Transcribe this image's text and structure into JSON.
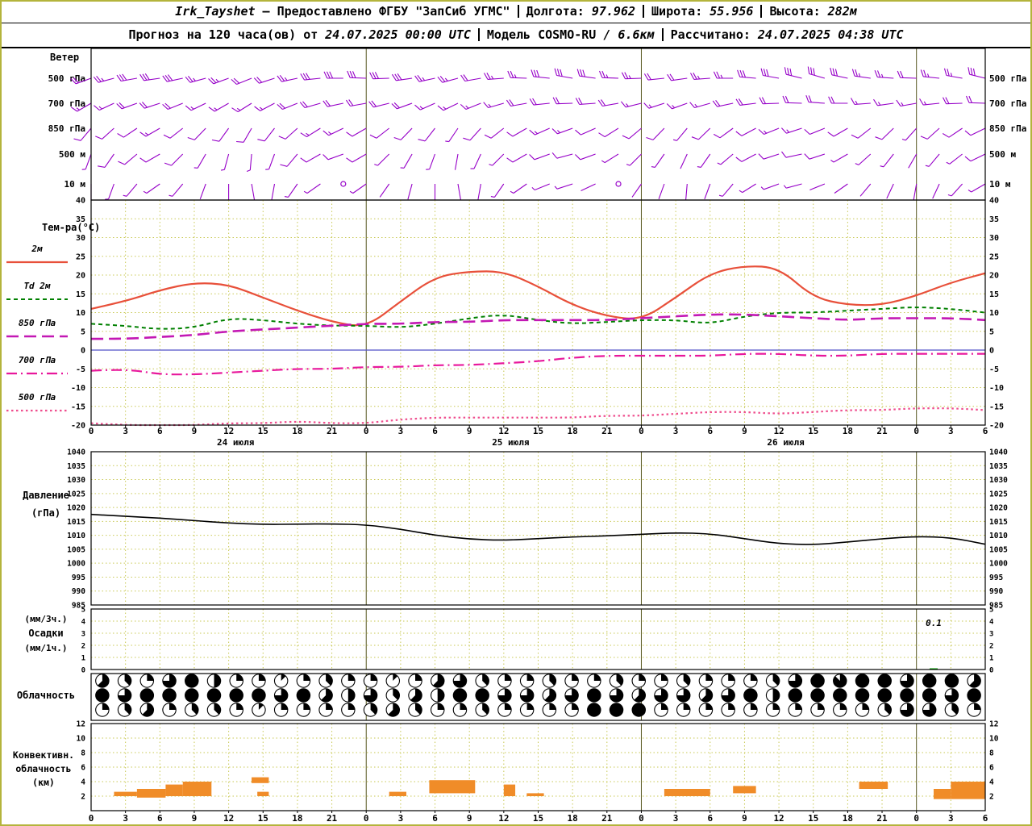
{
  "header": {
    "station": "Irk_Tayshet",
    "provider": "— Предоставлено ФГБУ \"ЗапСиб УГМС\"",
    "lon_label": "Долгота:",
    "lon": "97.962",
    "lat_label": "Широта:",
    "lat": "55.956",
    "alt_label": "Высота:",
    "alt": "282м",
    "forecast_label": "Прогноз на 120 часа(ов) от",
    "run_time": "24.07.2025 00:00 UTC",
    "model_label": "Модель",
    "model": "COSMO-RU",
    "model_res": "/ 6.6км",
    "calc_label": "Рассчитано:",
    "calc_time": "24.07.2025 04:38 UTC"
  },
  "palette": {
    "grid": "#c9c955",
    "day_line": "#55551e",
    "zero_line": "#5050c8",
    "barb": "#9600c8",
    "border_olive": "#b4b43c"
  },
  "axes": {
    "hour_max": 78,
    "hour_values": [
      0,
      3,
      6,
      9,
      12,
      15,
      18,
      21,
      24,
      27,
      30,
      33,
      36,
      39,
      42,
      45,
      48,
      51,
      54,
      57,
      60,
      63,
      66,
      69,
      72,
      75,
      78
    ],
    "hour_labels": [
      "0",
      "3",
      "6",
      "9",
      "12",
      "15",
      "18",
      "21",
      "0",
      "3",
      "6",
      "9",
      "12",
      "15",
      "18",
      "21",
      "0",
      "3",
      "6",
      "9",
      "12",
      "15",
      "18",
      "21",
      "0",
      "3",
      "6"
    ],
    "date_labels": [
      {
        "label": "24 июля",
        "hour": 12.6
      },
      {
        "label": "25 июля",
        "hour": 36.6
      },
      {
        "label": "26 июля",
        "hour": 60.6
      }
    ],
    "day_boundaries": [
      24,
      48,
      72
    ]
  },
  "chart_data": [
    {
      "id": "wind",
      "type": "wind-barbs",
      "title": "Ветер",
      "x_start_hour": 0,
      "x_step_hours": 2,
      "levels": [
        {
          "label": "500 гПа",
          "dirs_deg": [
            250,
            255,
            260,
            262,
            258,
            255,
            250,
            248,
            252,
            258,
            264,
            270,
            272,
            268,
            262,
            258,
            255,
            260,
            266,
            272,
            276,
            280,
            278,
            272,
            268,
            264,
            262,
            266,
            270,
            275,
            280,
            284,
            286,
            282,
            278,
            274,
            272,
            276,
            280,
            284
          ],
          "speeds_ms": [
            12,
            14,
            15,
            16,
            15,
            14,
            13,
            12,
            12,
            13,
            15,
            16,
            17,
            16,
            15,
            14,
            13,
            12,
            13,
            14,
            15,
            16,
            15,
            14,
            13,
            12,
            12,
            13,
            14,
            15,
            16,
            17,
            16,
            15,
            14,
            13,
            12,
            13,
            14,
            15
          ]
        },
        {
          "label": "700 гПа",
          "dirs_deg": [
            240,
            245,
            250,
            252,
            248,
            244,
            240,
            238,
            242,
            248,
            254,
            258,
            260,
            256,
            250,
            246,
            244,
            248,
            254,
            260,
            264,
            268,
            266,
            260,
            256,
            252,
            250,
            254,
            258,
            263,
            268,
            272,
            274,
            270,
            266,
            262,
            260,
            264,
            268,
            272
          ],
          "speeds_ms": [
            8,
            9,
            10,
            11,
            10,
            9,
            9,
            8,
            9,
            10,
            11,
            12,
            12,
            11,
            10,
            9,
            9,
            8,
            9,
            10,
            11,
            12,
            11,
            10,
            9,
            9,
            8,
            9,
            10,
            11,
            12,
            12,
            11,
            10,
            9,
            9,
            8,
            9,
            10,
            11
          ]
        },
        {
          "label": "850 гПа",
          "dirs_deg": [
            220,
            228,
            236,
            240,
            232,
            224,
            216,
            210,
            218,
            228,
            238,
            244,
            240,
            232,
            224,
            218,
            214,
            222,
            232,
            240,
            246,
            250,
            246,
            238,
            230,
            224,
            220,
            226,
            234,
            242,
            248,
            252,
            248,
            240,
            232,
            226,
            222,
            228,
            236,
            244
          ],
          "speeds_ms": [
            5,
            6,
            7,
            8,
            7,
            6,
            5,
            5,
            6,
            7,
            8,
            8,
            7,
            6,
            5,
            5,
            4,
            5,
            6,
            7,
            8,
            8,
            7,
            6,
            5,
            5,
            4,
            5,
            6,
            7,
            8,
            8,
            7,
            6,
            5,
            5,
            4,
            5,
            6,
            7
          ]
        },
        {
          "label": "500 м",
          "dirs_deg": [
            200,
            215,
            230,
            240,
            225,
            210,
            195,
            185,
            200,
            220,
            240,
            250,
            240,
            225,
            210,
            200,
            190,
            205,
            225,
            240,
            250,
            255,
            250,
            238,
            225,
            215,
            205,
            215,
            230,
            242,
            252,
            258,
            252,
            240,
            228,
            218,
            210,
            220,
            232,
            244
          ],
          "speeds_ms": [
            4,
            5,
            6,
            6,
            5,
            4,
            3,
            3,
            4,
            5,
            6,
            6,
            5,
            4,
            3,
            3,
            2,
            3,
            4,
            5,
            6,
            6,
            5,
            4,
            3,
            3,
            2,
            3,
            4,
            5,
            6,
            6,
            5,
            4,
            3,
            3,
            2,
            3,
            4,
            5
          ]
        },
        {
          "label": "10 м",
          "dirs_deg": [
            180,
            200,
            220,
            235,
            220,
            200,
            180,
            170,
            190,
            215,
            235,
            245,
            235,
            215,
            195,
            180,
            170,
            190,
            215,
            235,
            248,
            252,
            245,
            230,
            215,
            200,
            185,
            200,
            220,
            238,
            250,
            255,
            248,
            235,
            220,
            205,
            190,
            205,
            222,
            240
          ],
          "speeds_ms": [
            2,
            3,
            4,
            4,
            3,
            2,
            2,
            1,
            2,
            3,
            4,
            0,
            3,
            2,
            1,
            2,
            2,
            2,
            3,
            4,
            4,
            3,
            2,
            0,
            2,
            2,
            1,
            2,
            3,
            4,
            4,
            3,
            2,
            1,
            2,
            2,
            2,
            2,
            3,
            4
          ]
        }
      ]
    },
    {
      "id": "temperature",
      "type": "line",
      "title": "Тем-ра(°C)",
      "ylim": [
        -20,
        40
      ],
      "yticks": [
        40,
        35,
        30,
        25,
        20,
        15,
        10,
        5,
        0,
        -5,
        -10,
        -15,
        -20
      ],
      "x_hours": [
        0,
        3,
        6,
        9,
        12,
        15,
        18,
        21,
        24,
        27,
        30,
        33,
        36,
        39,
        42,
        45,
        48,
        51,
        54,
        57,
        60,
        63,
        66,
        69,
        72,
        75,
        78
      ],
      "series": [
        {
          "name": "2м",
          "color": "#e8503a",
          "style": "solid",
          "values": [
            11,
            13,
            16,
            18,
            17.5,
            14,
            10.5,
            7.5,
            6,
            13,
            19.5,
            21,
            21,
            17,
            12,
            9,
            8,
            14,
            20.5,
            22.5,
            22,
            14,
            12,
            12,
            14.5,
            18,
            20.5
          ]
        },
        {
          "name": "Td 2м",
          "color": "#008000",
          "style": "dashed",
          "values": [
            7,
            6.5,
            5.5,
            6,
            8.5,
            8,
            7,
            6.5,
            6.5,
            6,
            7,
            8.5,
            9.5,
            8,
            7,
            7.5,
            8,
            8,
            7,
            9,
            10,
            10,
            10.5,
            11,
            11.5,
            11,
            10
          ]
        },
        {
          "name": "850 гПа",
          "color": "#c318b4",
          "style": "longdash",
          "values": [
            3,
            3,
            3.5,
            4,
            5,
            5.5,
            6,
            6.5,
            7,
            7,
            7.5,
            7.5,
            8,
            8,
            8,
            8,
            8.5,
            9,
            9.5,
            9.5,
            9,
            8.5,
            8,
            8.5,
            8.5,
            8.5,
            8
          ]
        },
        {
          "name": "700 гПа",
          "color": "#e8189c",
          "style": "dashdot",
          "values": [
            -5.5,
            -5,
            -6.5,
            -6.5,
            -6,
            -5.5,
            -5,
            -5,
            -4.5,
            -4.5,
            -4,
            -4,
            -3.5,
            -3,
            -2,
            -1.5,
            -1.5,
            -1.5,
            -1.5,
            -1,
            -1,
            -1.5,
            -1.5,
            -1,
            -1,
            -1,
            -1
          ]
        },
        {
          "name": "500 гПа",
          "color": "#ef4e8e",
          "style": "dotted",
          "values": [
            -19.5,
            -20,
            -20,
            -20,
            -19.5,
            -19.5,
            -19,
            -19.5,
            -19.5,
            -18.5,
            -18,
            -18,
            -18,
            -18,
            -18,
            -17.5,
            -17.5,
            -17,
            -16.5,
            -16.5,
            -17,
            -16.5,
            -16,
            -16,
            -15.5,
            -15.5,
            -16
          ]
        }
      ]
    },
    {
      "id": "pressure",
      "type": "line",
      "title": "Давление (гПа)",
      "left_label_lines": [
        "Давление",
        "(гПа)"
      ],
      "ylim": [
        985,
        1040
      ],
      "yticks": [
        1040,
        1035,
        1030,
        1025,
        1020,
        1015,
        1010,
        1005,
        1000,
        995,
        990,
        985
      ],
      "x_hours": [
        0,
        3,
        6,
        9,
        12,
        15,
        18,
        21,
        24,
        27,
        30,
        33,
        36,
        39,
        42,
        45,
        48,
        51,
        54,
        57,
        60,
        63,
        66,
        69,
        72,
        75,
        78
      ],
      "series": [
        {
          "name": "Давление",
          "color": "#000000",
          "style": "solid",
          "values": [
            1017.5,
            1016.8,
            1016.2,
            1015.3,
            1014.4,
            1013.9,
            1014,
            1014.1,
            1013.8,
            1012.2,
            1010,
            1008.6,
            1008.2,
            1008.8,
            1009.4,
            1009.8,
            1010.4,
            1010.9,
            1010.6,
            1008.8,
            1007,
            1006.6,
            1007.6,
            1008.8,
            1009.6,
            1009.2,
            1006.8
          ]
        }
      ]
    },
    {
      "id": "precipitation",
      "type": "bar",
      "title": "Осадки (мм/3ч.) (мм/1ч.)",
      "left_label_lines": [
        "(мм/3ч.)",
        "Осадки",
        "(мм/1ч.)"
      ],
      "ylim": [
        0,
        5
      ],
      "yticks": [
        5,
        4,
        3,
        2,
        1,
        0
      ],
      "bar_color": "#00a000",
      "x_hours": [
        0,
        3,
        6,
        9,
        12,
        15,
        18,
        21,
        24,
        27,
        30,
        33,
        36,
        39,
        42,
        45,
        48,
        51,
        54,
        57,
        60,
        63,
        66,
        69,
        72,
        75,
        78
      ],
      "values": [
        0,
        0,
        0,
        0,
        0,
        0,
        0,
        0,
        0,
        0,
        0,
        0,
        0,
        0,
        0,
        0,
        0,
        0,
        0,
        0,
        0,
        0,
        0,
        0,
        0.1,
        0,
        0
      ],
      "annotation": {
        "text": "0.1",
        "hour": 73.5
      }
    },
    {
      "id": "cloud-cover",
      "type": "cloud-symbols",
      "title": "Облачность",
      "x_start_hour": 0,
      "x_step_hours": 2,
      "rows_octas": [
        [
          5,
          3,
          2,
          6,
          8,
          4,
          2,
          2,
          1,
          2,
          3,
          2,
          2,
          1,
          2,
          5,
          6,
          3,
          2,
          2,
          3,
          2,
          2,
          3,
          2,
          2,
          3,
          2,
          2,
          2,
          3,
          6,
          8,
          7,
          8,
          8,
          6,
          8,
          8,
          5
        ],
        [
          8,
          6,
          8,
          8,
          8,
          8,
          8,
          8,
          6,
          8,
          5,
          4,
          6,
          3,
          5,
          4,
          8,
          8,
          6,
          6,
          5,
          6,
          8,
          6,
          5,
          6,
          6,
          5,
          6,
          8,
          4,
          8,
          8,
          8,
          8,
          8,
          8,
          8,
          6,
          8
        ],
        [
          2,
          3,
          5,
          2,
          3,
          3,
          2,
          1,
          2,
          2,
          2,
          2,
          3,
          5,
          3,
          2,
          2,
          3,
          2,
          2,
          2,
          2,
          8,
          8,
          8,
          2,
          2,
          2,
          2,
          2,
          2,
          2,
          2,
          2,
          2,
          3,
          6,
          6,
          3,
          2
        ]
      ]
    },
    {
      "id": "convective-clouds",
      "type": "bar-segments",
      "title": "Конвективн. облачность (км)",
      "left_label_lines": [
        "Конвективн.",
        "облачность",
        "(км)"
      ],
      "ylim": [
        0,
        12
      ],
      "yticks": [
        12,
        10,
        8,
        6,
        4,
        2
      ],
      "bar_color": "#f08c28",
      "segments": [
        {
          "from": 2,
          "to": 4,
          "base": 2,
          "top": 2.6
        },
        {
          "from": 4,
          "to": 6.5,
          "base": 1.8,
          "top": 3
        },
        {
          "from": 6.5,
          "to": 8,
          "base": 2,
          "top": 3.6
        },
        {
          "from": 8,
          "to": 10.5,
          "base": 2,
          "top": 4
        },
        {
          "from": 14,
          "to": 15.5,
          "base": 3.8,
          "top": 4.6
        },
        {
          "from": 14.5,
          "to": 15.5,
          "base": 2,
          "top": 2.6
        },
        {
          "from": 26,
          "to": 27.5,
          "base": 2,
          "top": 2.6
        },
        {
          "from": 29.5,
          "to": 33.5,
          "base": 2.4,
          "top": 4.2
        },
        {
          "from": 36,
          "to": 37,
          "base": 2,
          "top": 3.6
        },
        {
          "from": 38,
          "to": 39.5,
          "base": 2,
          "top": 2.4
        },
        {
          "from": 50,
          "to": 54,
          "base": 2,
          "top": 3
        },
        {
          "from": 56,
          "to": 58,
          "base": 2.4,
          "top": 3.4
        },
        {
          "from": 67,
          "to": 69.5,
          "base": 3,
          "top": 4
        },
        {
          "from": 73.5,
          "to": 75,
          "base": 1.6,
          "top": 3
        },
        {
          "from": 75,
          "to": 78,
          "base": 1.6,
          "top": 4
        }
      ]
    }
  ]
}
